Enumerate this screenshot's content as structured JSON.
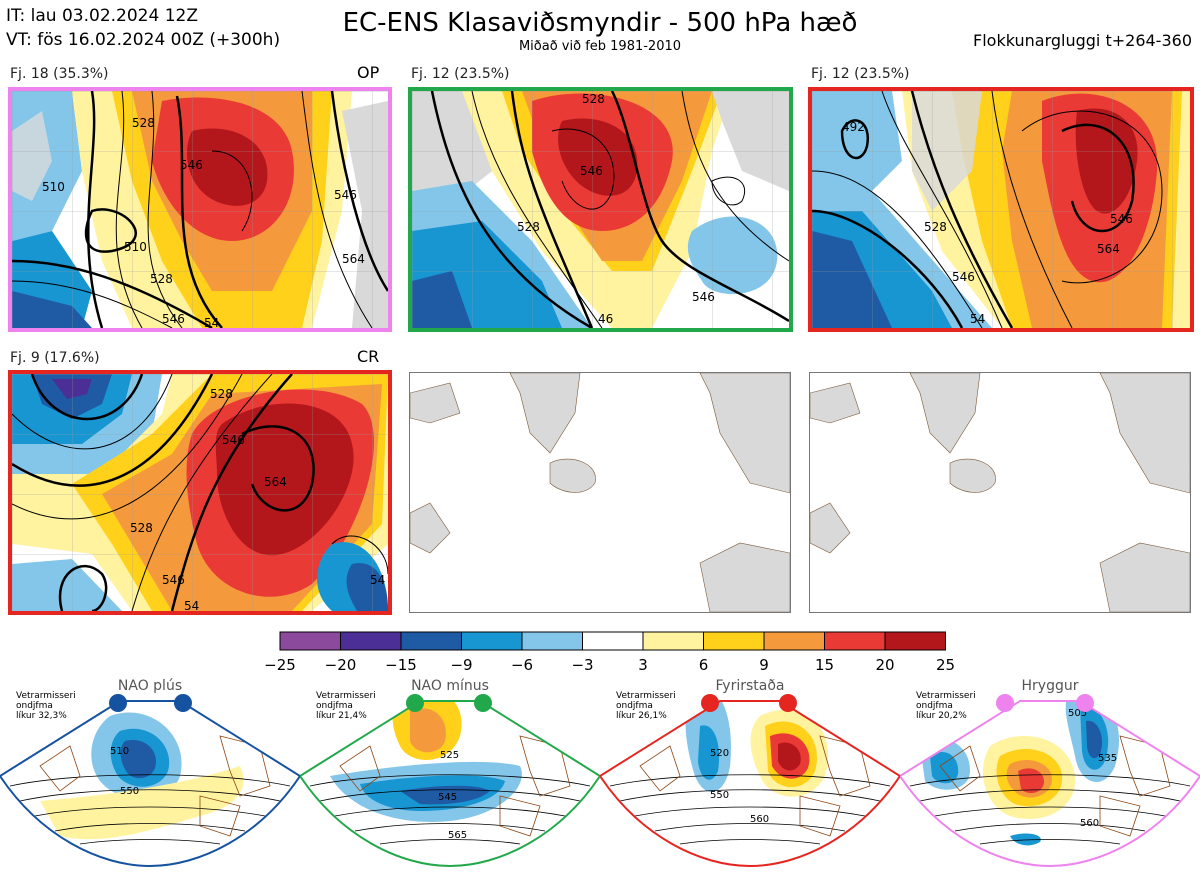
{
  "header": {
    "init_time": "IT: lau 03.02.2024 12Z",
    "valid_time": "VT: fös 16.02.2024 00Z  (+300h)",
    "title": "EC-ENS Klasaviðsmyndir - 500 hPa hæð",
    "subtitle": "Miðað við feb 1981-2010",
    "window": "Flokkunargluggi t+264-360"
  },
  "clusters": [
    {
      "caption": "Fj. 18 (35.3%)",
      "tag": "OP",
      "frame_color": "#ee82ee",
      "contour_labels": [
        "528",
        "546",
        "510",
        "510",
        "528",
        "546",
        "564",
        "546",
        "54"
      ]
    },
    {
      "caption": "Fj. 12 (23.5%)",
      "tag": "",
      "frame_color": "#21a84a",
      "contour_labels": [
        "528",
        "546",
        "528",
        "546",
        "46"
      ]
    },
    {
      "caption": "Fj. 12 (23.5%)",
      "tag": "",
      "frame_color": "#e52520",
      "contour_labels": [
        "492",
        "528",
        "546",
        "564",
        "546",
        "54"
      ]
    },
    {
      "caption": "Fj. 9 (17.6%)",
      "tag": "CR",
      "frame_color": "#e52520",
      "contour_labels": [
        "528",
        "546",
        "564",
        "528",
        "546",
        "54",
        "54"
      ]
    }
  ],
  "colorbar": {
    "ticks": [
      "−25",
      "−20",
      "−15",
      "−9",
      "−6",
      "−3",
      "3",
      "6",
      "9",
      "15",
      "20",
      "25"
    ],
    "colors": [
      "#8c4a9c",
      "#4b2f96",
      "#1f5aa5",
      "#1896d2",
      "#83c6ea",
      "#ffffff",
      "#fff3a0",
      "#ffd11a",
      "#f59a3c",
      "#ea3a36",
      "#b3161b"
    ]
  },
  "regimes": [
    {
      "name": "NAO plús",
      "season": "Vetrarmisseri",
      "method": "ondjfma",
      "prob": "líkur 32,3%",
      "color": "#1552a0",
      "labels": [
        "510",
        "550"
      ]
    },
    {
      "name": "NAO mínus",
      "season": "Vetrarmisseri",
      "method": "ondjfma",
      "prob": "líkur 21,4%",
      "color": "#21a84a",
      "labels": [
        "525",
        "545",
        "565"
      ]
    },
    {
      "name": "Fyrirstaða",
      "season": "Vetrarmisseri",
      "method": "ondjfma",
      "prob": "líkur 26,1%",
      "color": "#e52520",
      "labels": [
        "520",
        "550",
        "560"
      ]
    },
    {
      "name": "Hryggur",
      "season": "Vetrarmisseri",
      "method": "ondjfma",
      "prob": "líkur 20,2%",
      "color": "#ee82ee",
      "labels": [
        "505",
        "535",
        "560"
      ]
    }
  ],
  "chart_data": {
    "type": "heatmap",
    "title": "EC-ENS Klasaviðsmyndir - 500 hPa hæð",
    "subtitle": "Miðað við feb 1981-2010",
    "cluster_probabilities": [
      {
        "cluster": "Fj. 18",
        "percent": 35.3,
        "tag": "OP"
      },
      {
        "cluster": "Fj. 12",
        "percent": 23.5
      },
      {
        "cluster": "Fj. 12",
        "percent": 23.5
      },
      {
        "cluster": "Fj. 9",
        "percent": 17.6,
        "tag": "CR"
      }
    ],
    "regime_probabilities": [
      {
        "regime": "NAO plús",
        "percent": 32.3
      },
      {
        "regime": "NAO mínus",
        "percent": 21.4
      },
      {
        "regime": "Fyrirstaða",
        "percent": 26.1
      },
      {
        "regime": "Hryggur",
        "percent": 20.2
      }
    ],
    "anomaly_bins": [
      -25,
      -20,
      -15,
      -9,
      -6,
      -3,
      3,
      6,
      9,
      15,
      20,
      25
    ]
  }
}
